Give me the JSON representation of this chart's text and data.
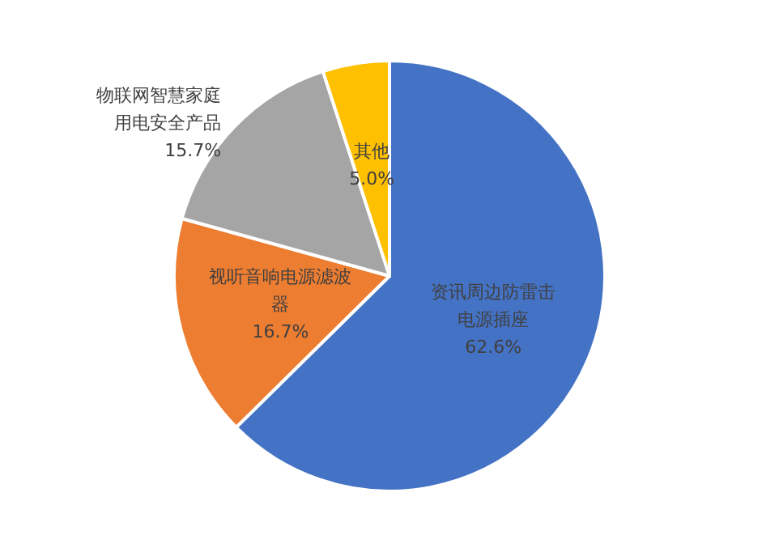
{
  "chart_data": {
    "type": "pie",
    "categories": [
      "资讯周边防雷击电源插座",
      "视听音响电源滤波器",
      "物联网智慧家庭用电安全产品",
      "其他"
    ],
    "values": [
      62.6,
      16.7,
      15.7,
      5.0
    ],
    "value_labels": [
      "62.6%",
      "16.7%",
      "15.7%",
      "5.0%"
    ],
    "colors": [
      "#4472c4",
      "#ed7d31",
      "#a5a5a5",
      "#ffc000"
    ],
    "legend": false
  }
}
